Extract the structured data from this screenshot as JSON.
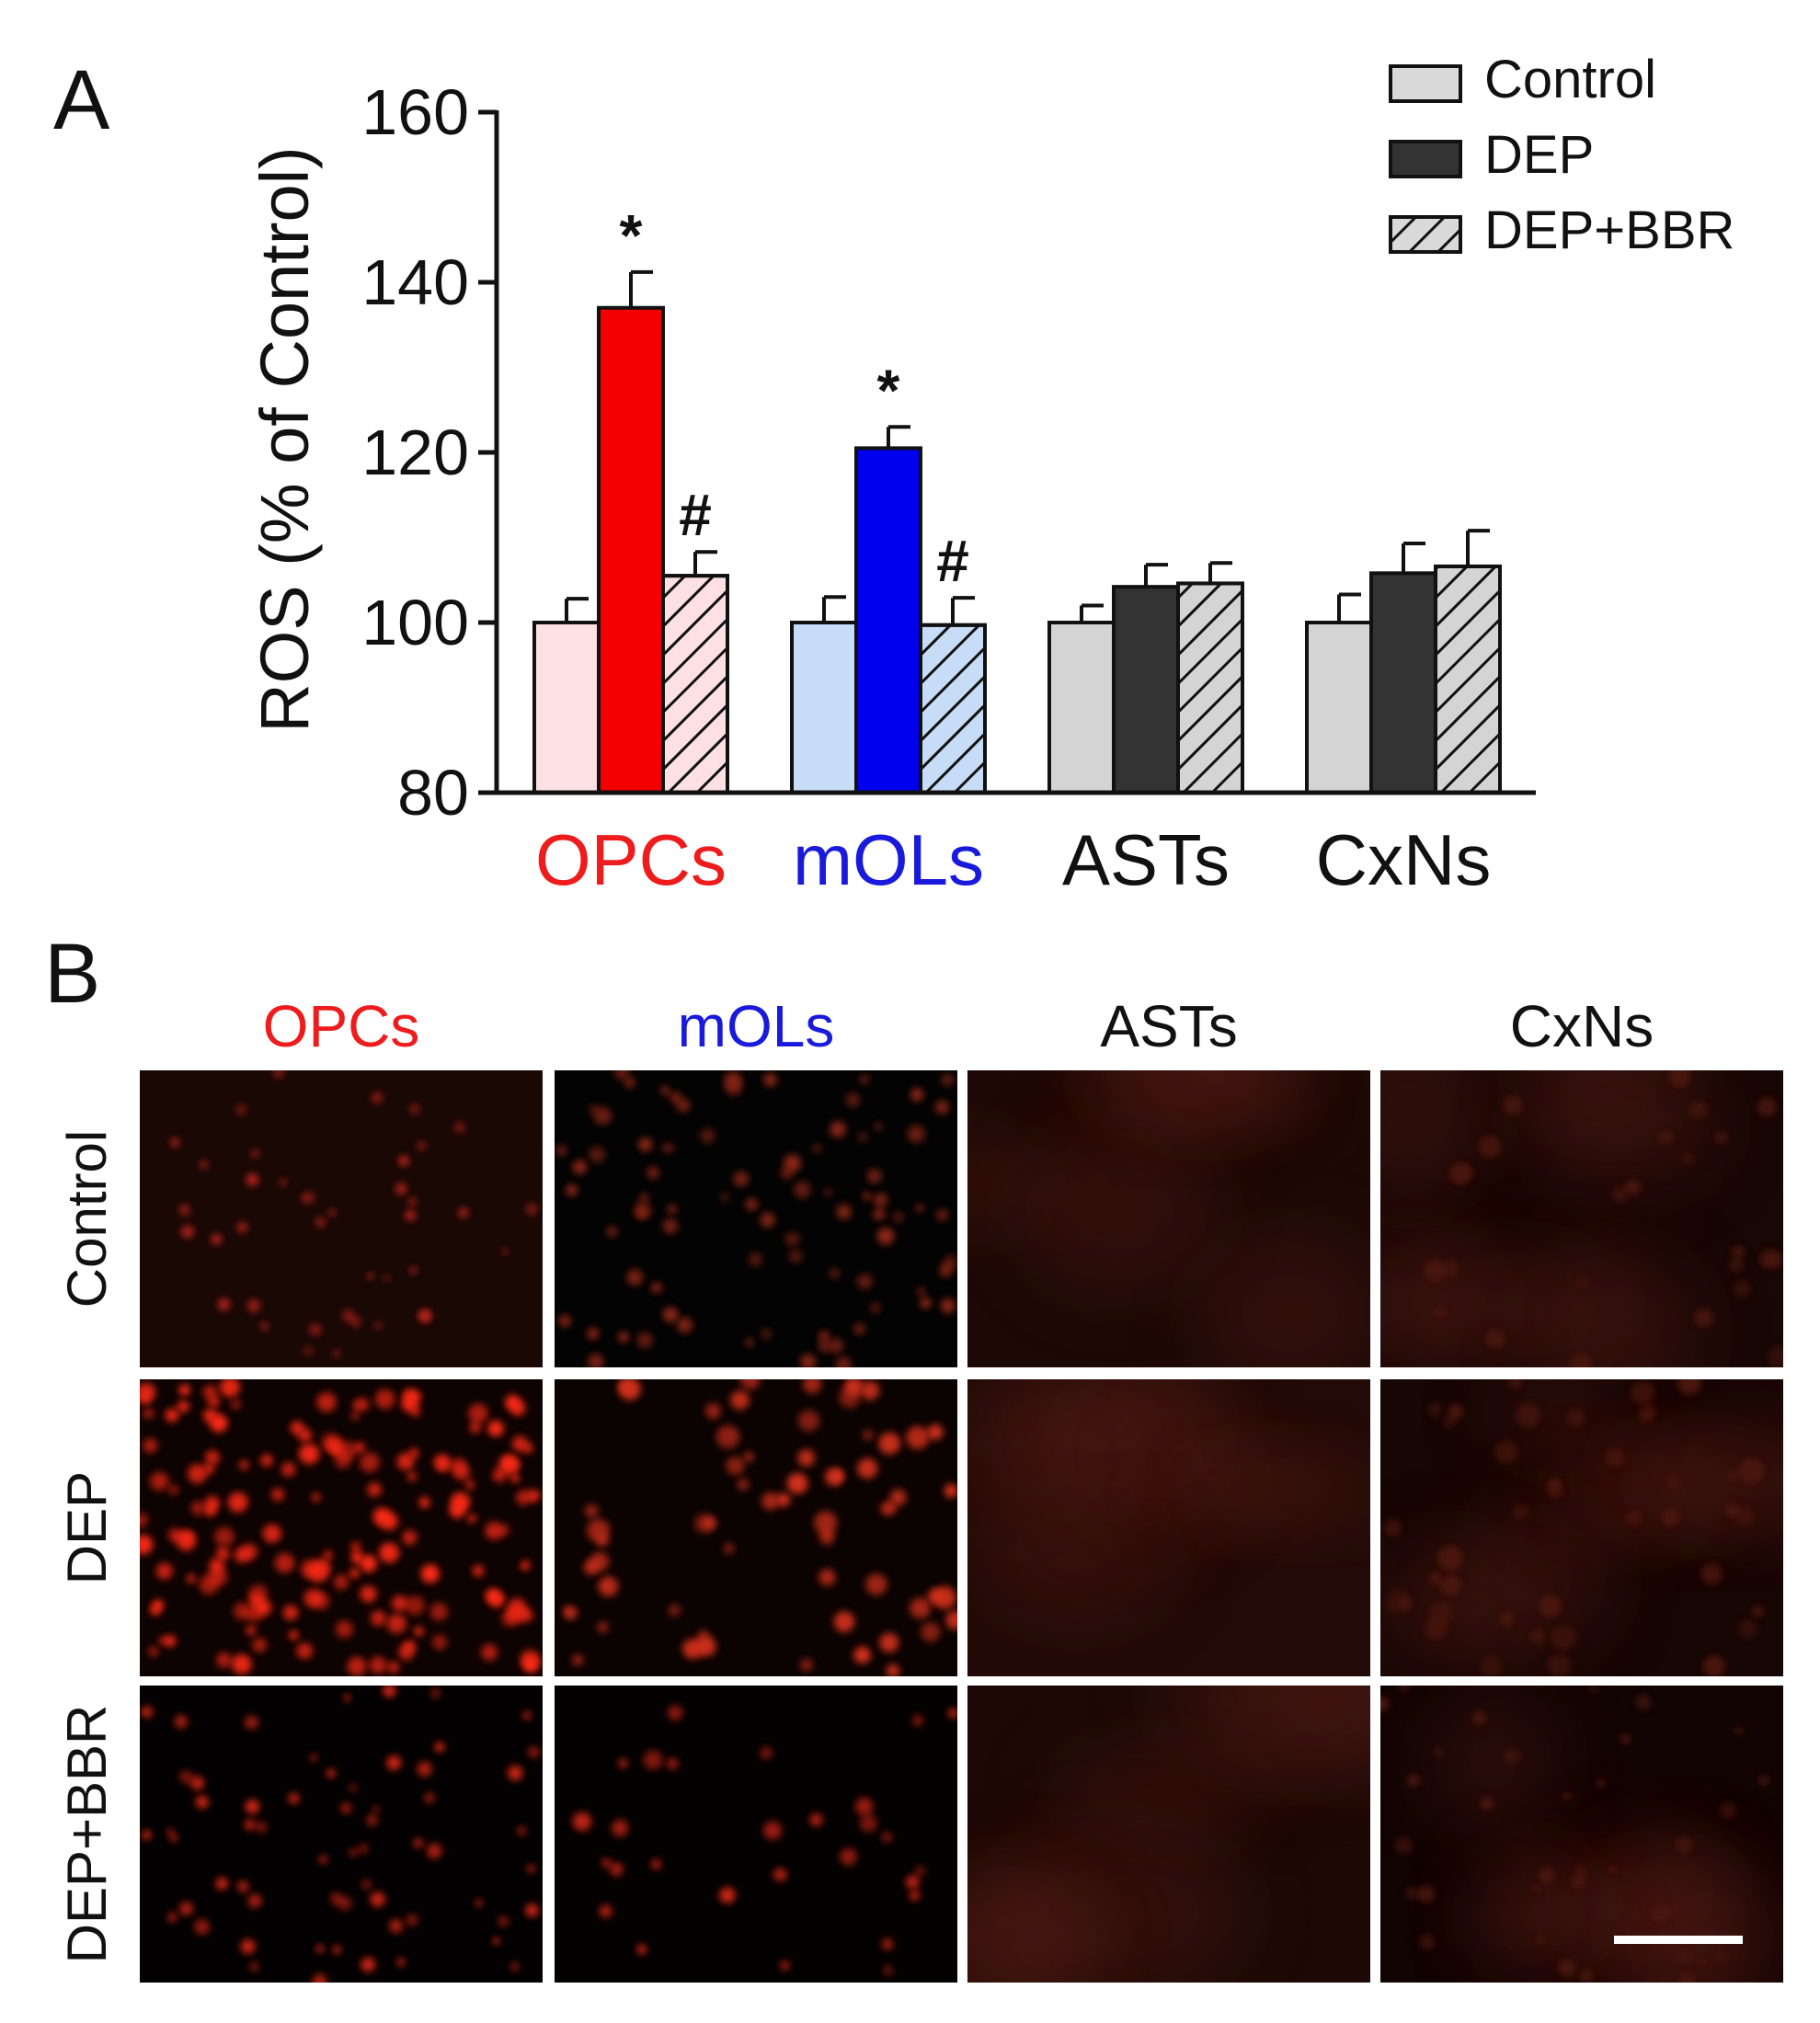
{
  "panel_labels": {
    "a": "A",
    "b": "B"
  },
  "chart_data": {
    "type": "bar",
    "title": "",
    "xlabel": "",
    "ylabel": "ROS (% of Control)",
    "ylim": [
      80,
      160
    ],
    "yticks": [
      80,
      100,
      120,
      140,
      160
    ],
    "grid": false,
    "legend_position": "top-right",
    "categories": [
      "OPCs",
      "mOLs",
      "ASTs",
      "CxNs"
    ],
    "category_colors": [
      "#ee1c1c",
      "#1a1adc",
      "#111111",
      "#111111"
    ],
    "series": [
      {
        "name": "Control",
        "values": [
          100,
          100,
          100,
          100
        ],
        "errors": [
          2.8,
          3.0,
          2.0,
          3.3
        ],
        "pattern": "solid"
      },
      {
        "name": "DEP",
        "values": [
          137,
          120.5,
          104.2,
          105.8
        ],
        "errors": [
          4.2,
          2.5,
          2.6,
          3.5
        ],
        "pattern": "solid"
      },
      {
        "name": "DEP+BBR",
        "values": [
          105.5,
          99.7,
          104.6,
          106.6
        ],
        "errors": [
          2.8,
          3.2,
          2.4,
          4.2
        ],
        "pattern": "hatched"
      }
    ],
    "bar_colors": [
      [
        "#fde0e3",
        "#f40000",
        "#fde0e3"
      ],
      [
        "#c7dcf6",
        "#0000ee",
        "#c7dcf6"
      ],
      [
        "#d4d4d4",
        "#333333",
        "#d4d4d4"
      ],
      [
        "#d4d4d4",
        "#333333",
        "#d4d4d4"
      ]
    ],
    "legend_colors": [
      "#d9d9d9",
      "#333333",
      "#d9d9d9"
    ],
    "annotations": [
      {
        "category": "OPCs",
        "series": "DEP",
        "text": "*"
      },
      {
        "category": "OPCs",
        "series": "DEP+BBR",
        "text": "#"
      },
      {
        "category": "mOLs",
        "series": "DEP",
        "text": "*"
      },
      {
        "category": "mOLs",
        "series": "DEP+BBR",
        "text": "#"
      }
    ]
  },
  "micrographs": {
    "columns": [
      "OPCs",
      "mOLs",
      "ASTs",
      "CxNs"
    ],
    "column_colors": [
      "#ee1c1c",
      "#1a1adc",
      "#111111",
      "#111111"
    ],
    "rows": [
      "Control",
      "DEP",
      "DEP+BBR"
    ],
    "has_scale_bar": true
  }
}
